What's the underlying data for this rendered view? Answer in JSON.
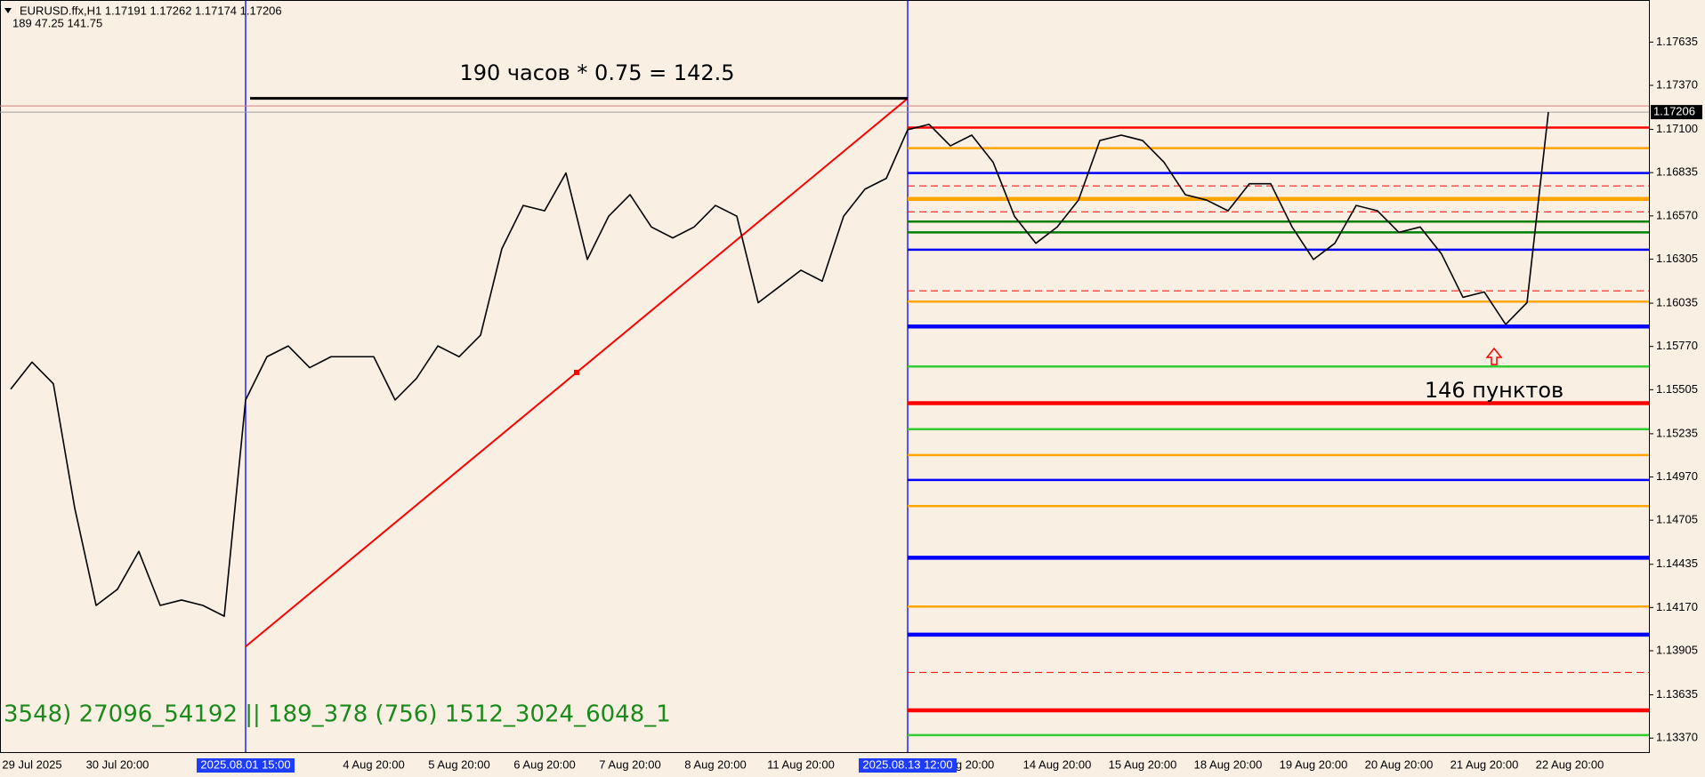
{
  "chart_data": {
    "type": "line",
    "title": "EURUSD.ffx,H1  1.17191 1.17262 1.17174 1.17206",
    "subtitle": "189  47.25  141.75",
    "categories": [
      null,
      "29 Jul 2025",
      null,
      null,
      null,
      "30 Jul 20:00",
      null,
      null,
      null,
      null,
      null,
      "2025.08.01 15:00",
      null,
      null,
      null,
      null,
      null,
      "4 Aug 20:00",
      null,
      null,
      null,
      "5 Aug 20:00",
      null,
      null,
      null,
      "6 Aug 20:00",
      null,
      null,
      null,
      "7 Aug 20:00",
      null,
      null,
      null,
      "8 Aug 20:00",
      null,
      null,
      null,
      "11 Aug 20:00",
      null,
      null,
      null,
      null,
      "2025.08.13 12:00",
      null,
      null,
      "ug 20:00",
      null,
      null,
      null,
      "14 Aug 20:00",
      null,
      null,
      null,
      "15 Aug 20:00",
      null,
      null,
      null,
      "18 Aug 20:00",
      null,
      null,
      null,
      "19 Aug 20:00",
      null,
      null,
      null,
      "20 Aug 20:00",
      null,
      null,
      null,
      "21 Aug 20:00",
      null,
      null,
      null,
      "22 Aug 20:00",
      null,
      null,
      null
    ],
    "series": [
      {
        "name": "EURUSD.ffx,H1",
        "color": "#000000",
        "values": [
          1.15508,
          1.15674,
          1.15541,
          1.14779,
          1.14183,
          1.14282,
          1.14514,
          1.14183,
          1.14216,
          1.14183,
          1.14117,
          1.15442,
          1.15707,
          1.15773,
          1.1564,
          1.15707,
          1.15707,
          1.15707,
          1.15442,
          1.15574,
          1.15773,
          1.15707,
          1.15839,
          1.16369,
          1.16634,
          1.16601,
          1.16833,
          1.16303,
          1.16568,
          1.167,
          1.16502,
          1.16435,
          1.16502,
          1.16634,
          1.16568,
          1.16038,
          1.16137,
          1.16237,
          1.1617,
          1.16568,
          1.16734,
          1.168,
          1.17098,
          1.17131,
          1.16999,
          1.17065,
          1.16899,
          1.16568,
          1.16402,
          1.16502,
          1.16667,
          1.17032,
          1.17065,
          1.17032,
          1.16899,
          1.167,
          1.16667,
          1.16601,
          1.16767,
          1.16767,
          1.16502,
          1.16303,
          1.16402,
          1.16634,
          1.16601,
          1.16469,
          1.16502,
          1.16336,
          1.16071,
          1.16104,
          1.15905,
          1.16038,
          1.17206,
          null,
          null,
          null,
          null
        ]
      }
    ],
    "ylim": [
      1.13284,
      1.17893
    ],
    "yticks": [
      1.17635,
      {
        "value": 1.1737,
        "label": "1.17370"
      },
      {
        "value": 1.171,
        "label": "1.17100"
      },
      1.16835,
      {
        "value": 1.1657,
        "label": "1.16570"
      },
      1.16305,
      1.16035,
      {
        "value": 1.1577,
        "label": "1.15770"
      },
      1.15505,
      1.15235,
      {
        "value": 1.1497,
        "label": "1.14970"
      },
      1.14705,
      1.14435,
      {
        "value": 1.1417,
        "label": "1.14170"
      },
      1.13905,
      1.13635,
      {
        "value": 1.1337,
        "label": "1.13370"
      }
    ],
    "last_price": 1.17206,
    "ask": 1.17244,
    "vertical_lines": [
      "2025.08.01 15:00",
      "2025.08.13 12:00"
    ],
    "trend_line": [
      1.13931,
      1.1729
    ],
    "levels": [
      {
        "value": 1.17111,
        "color": "#ff0000",
        "style": "medium"
      },
      {
        "value": 1.16985,
        "color": "#ffa500",
        "style": "medium"
      },
      {
        "value": 1.16833,
        "color": "#0000ff",
        "style": "medium"
      },
      {
        "value": 1.16754,
        "color": "#ff0000",
        "style": "dashed"
      },
      {
        "value": 1.16674,
        "color": "#ffa500",
        "style": "thick"
      },
      {
        "value": 1.16595,
        "color": "#ff0000",
        "style": "dashed"
      },
      {
        "value": 1.16535,
        "color": "#008000",
        "style": "medium"
      },
      {
        "value": 1.16469,
        "color": "#008000",
        "style": "medium"
      },
      {
        "value": 1.16363,
        "color": "#0000ff",
        "style": "medium"
      },
      {
        "value": 1.16111,
        "color": "#ff0000",
        "style": "dashed"
      },
      {
        "value": 1.16045,
        "color": "#ffa500",
        "style": "medium"
      },
      {
        "value": 1.15892,
        "color": "#0000ff",
        "style": "thick"
      },
      {
        "value": 1.15647,
        "color": "#32cd32",
        "style": "medium"
      },
      {
        "value": 1.15422,
        "color": "#ff0000",
        "style": "thick"
      },
      {
        "value": 1.15263,
        "color": "#32cd32",
        "style": "medium"
      },
      {
        "value": 1.15104,
        "color": "#ffa500",
        "style": "medium"
      },
      {
        "value": 1.14952,
        "color": "#0000ff",
        "style": "medium"
      },
      {
        "value": 1.14792,
        "color": "#ffa500",
        "style": "medium"
      },
      {
        "value": 1.14475,
        "color": "#0000ff",
        "style": "thick"
      },
      {
        "value": 1.14176,
        "color": "#ffa500",
        "style": "medium"
      },
      {
        "value": 1.14004,
        "color": "#0000ff",
        "style": "thick"
      },
      {
        "value": 1.13772,
        "color": "#ff0000",
        "style": "dashed"
      },
      {
        "value": 1.1354,
        "color": "#ff0000",
        "style": "thick"
      },
      {
        "value": 1.13388,
        "color": "#32cd32",
        "style": "medium"
      }
    ],
    "annotations": [
      "190 часов * 0.75 = 142.5",
      "146 пунктов",
      "3548) 27096_54192 || 189_378 (756) 1512_3024_6048_1"
    ]
  }
}
